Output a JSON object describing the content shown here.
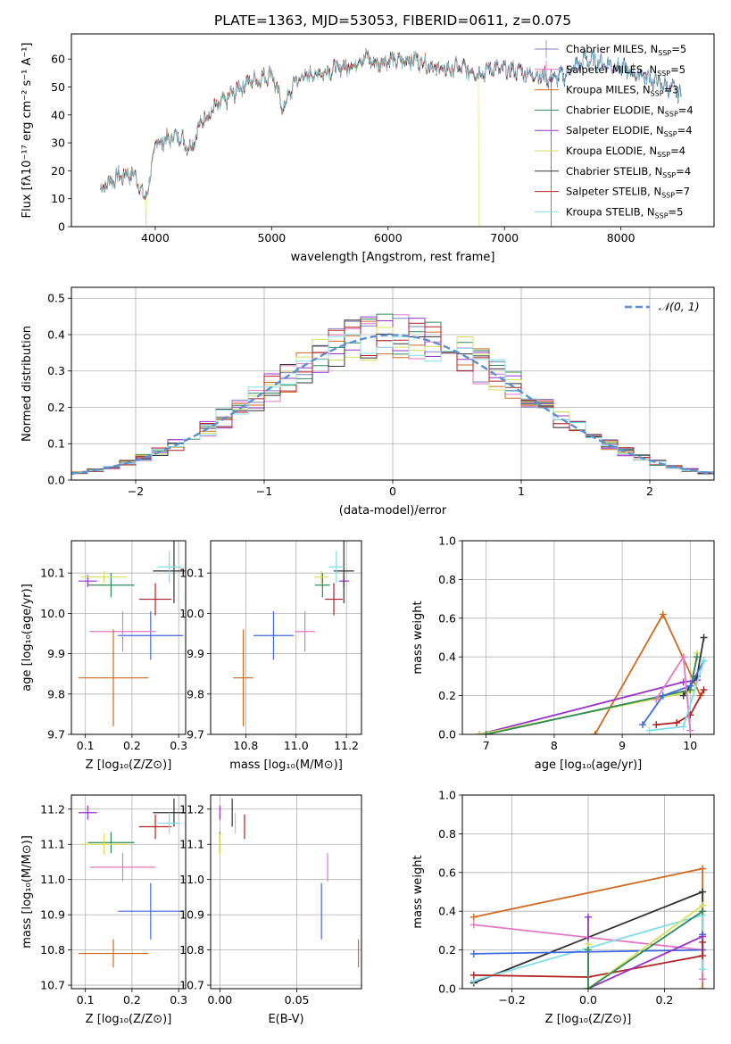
{
  "suptitle": "PLATE=1363, MJD=53053, FIBERID=0611, z=0.075",
  "colors": {
    "Chabrier MILES": "#7f7fc0",
    "Salpeter MILES": "#e377c2",
    "Kroupa MILES": "#d2691e",
    "Chabrier ELODIE": "#2e8b57",
    "Salpeter ELODIE": "#9932cc",
    "Kroupa ELODIE": "#d4e157",
    "Chabrier STELIB": "#333333",
    "Salpeter STELIB": "#b22222",
    "Kroupa STELIB": "#80deea",
    "model_blue": "#4169e1",
    "normal_curve": "#5b8fd6",
    "grid": "#b0b0b0"
  },
  "chart_data": [
    {
      "id": "spectrum",
      "type": "line",
      "title": "PLATE=1363, MJD=53053, FIBERID=0611, z=0.075",
      "xlabel": "wavelength [Angstrom, rest frame]",
      "ylabel": "Flux [fλ10⁻¹⁷ erg cm⁻² s⁻¹ A⁻¹]",
      "xlim": [
        3280,
        8800
      ],
      "ylim": [
        0,
        69
      ],
      "xticks": [
        4000,
        5000,
        6000,
        7000,
        8000
      ],
      "yticks": [
        0,
        10,
        20,
        30,
        40,
        50,
        60
      ],
      "legend_position": "upper right",
      "legend": [
        {
          "name": "Chabrier MILES, N",
          "sub": "SSP",
          "tail": "=5"
        },
        {
          "name": "Salpeter MILES, N",
          "sub": "SSP",
          "tail": "=5"
        },
        {
          "name": "Kroupa MILES, N",
          "sub": "SSP",
          "tail": "=3"
        },
        {
          "name": "Chabrier ELODIE, N",
          "sub": "SSP",
          "tail": "=4"
        },
        {
          "name": "Salpeter ELODIE, N",
          "sub": "SSP",
          "tail": "=4"
        },
        {
          "name": "Kroupa ELODIE, N",
          "sub": "SSP",
          "tail": "=4"
        },
        {
          "name": "Chabrier STELIB, N",
          "sub": "SSP",
          "tail": "=4"
        },
        {
          "name": "Salpeter STELIB, N",
          "sub": "SSP",
          "tail": "=7"
        },
        {
          "name": "Kroupa STELIB, N",
          "sub": "SSP",
          "tail": "=5"
        }
      ],
      "continuum": {
        "x": [
          3530,
          3600,
          3700,
          3800,
          3850,
          3900,
          3950,
          4000,
          4100,
          4200,
          4300,
          4400,
          4500,
          4600,
          4700,
          4800,
          4900,
          5000,
          5100,
          5200,
          5300,
          5400,
          5500,
          5600,
          5700,
          5800,
          5900,
          6000,
          6100,
          6200,
          6300,
          6400,
          6500,
          6600,
          6700,
          6800,
          6900,
          7000,
          7100,
          7200,
          7300,
          7400,
          7500,
          7600,
          7700,
          7800,
          7900,
          8000,
          8100,
          8200,
          8300,
          8400,
          8500
        ],
        "y": [
          13,
          16,
          18,
          19,
          17,
          10,
          15,
          30,
          31,
          33,
          28,
          38,
          42,
          45,
          49,
          52,
          53,
          55,
          42,
          52,
          54,
          55,
          56,
          57,
          58,
          61,
          58,
          60,
          59,
          60,
          59,
          57,
          56,
          57,
          56,
          55,
          57,
          56,
          56,
          55,
          54,
          53,
          54,
          57,
          60,
          59,
          58,
          57,
          55,
          54,
          52,
          50,
          48
        ]
      },
      "cutoffs": {
        "Kroupa ELODIE": [
          3920,
          6780
        ],
        "Salpeter STELIB": [
          7400,
          7400
        ],
        "Kroupa MILES": [
          7400,
          7400
        ]
      }
    },
    {
      "id": "residuals",
      "type": "histogram",
      "xlabel": "(data-model)/error",
      "ylabel": "Normed distribution",
      "xlim": [
        -2.5,
        2.5
      ],
      "ylim": [
        0,
        0.53
      ],
      "xticks": [
        -2,
        -1,
        0,
        1,
        2
      ],
      "yticks": [
        0.0,
        0.1,
        0.2,
        0.3,
        0.4,
        0.5
      ],
      "legend": [
        "𝒩(0, 1)"
      ],
      "legend_position": "upper right",
      "bin_width": 0.125
    },
    {
      "id": "age_vs_Z",
      "type": "errorbar",
      "xlabel": "Z [log₁₀(Z/Z⊙)]",
      "ylabel": "age  [log₁₀(age/yr)]",
      "xlim": [
        0.07,
        0.315
      ],
      "ylim": [
        9.7,
        10.18
      ],
      "xticks": [
        0.1,
        0.2,
        0.3
      ],
      "yticks": [
        9.7,
        9.8,
        9.9,
        10.0,
        10.1
      ]
    },
    {
      "id": "age_vs_mass",
      "type": "errorbar",
      "xlabel": "mass [log₁₀(M/M⊙)]",
      "ylabel": "",
      "xlim": [
        10.66,
        11.26
      ],
      "ylim": [
        9.7,
        10.18
      ],
      "xticks": [
        10.8,
        11.0,
        11.2
      ],
      "yticks": [
        9.7,
        9.8,
        9.9,
        10.0,
        10.1
      ]
    },
    {
      "id": "mass_vs_Z",
      "type": "errorbar",
      "xlabel": "Z [log₁₀(Z/Z⊙)]",
      "ylabel": "mass [log₁₀(M/M⊙)]",
      "xlim": [
        0.07,
        0.315
      ],
      "ylim": [
        10.69,
        11.24
      ],
      "xticks": [
        0.1,
        0.2,
        0.3
      ],
      "yticks": [
        10.7,
        10.8,
        10.9,
        11.0,
        11.1,
        11.2
      ]
    },
    {
      "id": "mass_vs_ebv",
      "type": "errorbar",
      "xlabel": "E(B-V)",
      "ylabel": "",
      "xlim": [
        -0.006,
        0.092
      ],
      "ylim": [
        10.69,
        11.24
      ],
      "xticks": [
        0.0,
        0.05
      ],
      "yticks": [
        10.7,
        10.8,
        10.9,
        11.0,
        11.1,
        11.2
      ]
    },
    {
      "id": "mw_vs_age",
      "type": "line",
      "xlabel": "age  [log₁₀(age/yr)]",
      "ylabel": "mass weight",
      "xlim": [
        6.65,
        10.35
      ],
      "ylim": [
        0,
        1.0
      ],
      "xticks": [
        7,
        8,
        9,
        10
      ],
      "yticks": [
        0.0,
        0.2,
        0.4,
        0.6,
        0.8,
        1.0
      ],
      "series": [
        {
          "model": "Kroupa MILES",
          "x": [
            8.6,
            9.6,
            10.15
          ],
          "y": [
            0.0,
            0.62,
            0.2
          ]
        },
        {
          "model": "Salpeter ELODIE",
          "x": [
            6.9,
            9.9,
            10.1
          ],
          "y": [
            0.0,
            0.27,
            0.28
          ]
        },
        {
          "model": "Kroupa ELODIE",
          "x": [
            6.9,
            10.0,
            10.1
          ],
          "y": [
            0.0,
            0.22,
            0.42
          ]
        },
        {
          "model": "Chabrier ELODIE",
          "x": [
            7.0,
            10.0,
            10.1
          ],
          "y": [
            0.0,
            0.23,
            0.4
          ]
        },
        {
          "model": "Chabrier STELIB",
          "x": [
            9.9,
            10.1,
            10.2
          ],
          "y": [
            0.2,
            0.3,
            0.5
          ]
        },
        {
          "model": "Salpeter STELIB",
          "x": [
            9.5,
            9.8,
            10.0,
            10.2
          ],
          "y": [
            0.05,
            0.06,
            0.1,
            0.23
          ]
        },
        {
          "model": "Chabrier MILES",
          "x": [
            9.3,
            9.6,
            10.0,
            10.2
          ],
          "y": [
            0.05,
            0.2,
            0.25,
            0.38
          ]
        },
        {
          "model": "Salpeter MILES",
          "x": [
            9.5,
            9.9,
            10.0
          ],
          "y": [
            0.18,
            0.4,
            0.02
          ]
        },
        {
          "model": "Kroupa STELIB",
          "x": [
            9.4,
            9.9,
            10.2
          ],
          "y": [
            0.02,
            0.04,
            0.38
          ]
        }
      ]
    },
    {
      "id": "mw_vs_Z",
      "type": "line",
      "xlabel": "Z [log₁₀(Z/Z⊙)]",
      "ylabel": "mass weight",
      "xlim": [
        -0.33,
        0.33
      ],
      "ylim": [
        0,
        1.0
      ],
      "xticks": [
        -0.2,
        0.0,
        0.2
      ],
      "yticks": [
        0.0,
        0.2,
        0.4,
        0.6,
        0.8,
        1.0
      ],
      "series": [
        {
          "model": "Kroupa MILES",
          "x": [
            -0.3,
            0.3,
            0.3
          ],
          "y": [
            0.37,
            0.62,
            0.0
          ]
        },
        {
          "model": "Chabrier STELIB",
          "x": [
            -0.3,
            0.3,
            0.3
          ],
          "y": [
            0.03,
            0.5,
            0.05
          ]
        },
        {
          "model": "Salpeter MILES",
          "x": [
            -0.3,
            0.3,
            0.3
          ],
          "y": [
            0.33,
            0.2,
            0.05
          ]
        },
        {
          "model": "Kroupa STELIB",
          "x": [
            -0.3,
            0.3,
            0.3
          ],
          "y": [
            0.04,
            0.38,
            0.1
          ]
        },
        {
          "model": "Chabrier MILES",
          "x": [
            -0.3,
            0.3,
            0.3
          ],
          "y": [
            0.18,
            0.2,
            0.28
          ]
        },
        {
          "model": "Salpeter STELIB",
          "x": [
            -0.3,
            0.0,
            0.3,
            0.3
          ],
          "y": [
            0.07,
            0.06,
            0.17,
            0.24
          ]
        },
        {
          "model": "Salpeter ELODIE",
          "x": [
            0.0,
            0.0,
            0.3
          ],
          "y": [
            0.37,
            0.0,
            0.27
          ]
        },
        {
          "model": "Kroupa ELODIE",
          "x": [
            0.0,
            0.0,
            0.3
          ],
          "y": [
            0.23,
            0.0,
            0.43
          ]
        },
        {
          "model": "Chabrier ELODIE",
          "x": [
            0.0,
            0.0,
            0.3
          ],
          "y": [
            0.2,
            0.0,
            0.4
          ]
        }
      ]
    }
  ],
  "errorbars": [
    {
      "model": "Chabrier MILES",
      "color": "model_blue",
      "Z": 0.24,
      "Zerr": 0.07,
      "age": 9.945,
      "ageerr": 0.06,
      "mass": 10.91,
      "masserr": 0.08,
      "ebv": 0.066,
      "ebverr": 0.0
    },
    {
      "model": "Salpeter MILES",
      "color": "Salpeter MILES",
      "Z": 0.18,
      "Zerr": 0.07,
      "age": 9.955,
      "ageerr": 0.05,
      "mass": 11.035,
      "masserr": 0.04,
      "ebv": 0.07,
      "ebverr": 0.0
    },
    {
      "model": "Kroupa MILES",
      "color": "Kroupa MILES",
      "Z": 0.16,
      "Zerr": 0.075,
      "age": 9.84,
      "ageerr": 0.12,
      "mass": 10.79,
      "masserr": 0.04,
      "ebv": 0.09,
      "ebverr": 0.0
    },
    {
      "model": "Chabrier ELODIE",
      "color": "Chabrier ELODIE",
      "Z": 0.155,
      "Zerr": 0.05,
      "age": 10.07,
      "ageerr": 0.03,
      "mass": 11.105,
      "masserr": 0.03,
      "ebv": 0.0,
      "ebverr": 0.0
    },
    {
      "model": "Salpeter ELODIE",
      "color": "Salpeter ELODIE",
      "Z": 0.105,
      "Zerr": 0.02,
      "age": 10.08,
      "ageerr": 0.015,
      "mass": 11.19,
      "masserr": 0.02,
      "ebv": 0.0,
      "ebverr": 0.0
    },
    {
      "model": "Kroupa ELODIE",
      "color": "Kroupa ELODIE",
      "Z": 0.14,
      "Zerr": 0.05,
      "age": 10.09,
      "ageerr": 0.015,
      "mass": 11.1,
      "masserr": 0.03,
      "ebv": 0.0,
      "ebverr": 0.0
    },
    {
      "model": "Chabrier STELIB",
      "color": "Chabrier STELIB",
      "Z": 0.29,
      "Zerr": 0.045,
      "age": 10.105,
      "ageerr": 0.08,
      "mass": 11.19,
      "masserr": 0.04,
      "ebv": 0.008,
      "ebverr": 0.0
    },
    {
      "model": "Salpeter STELIB",
      "color": "Salpeter STELIB",
      "Z": 0.25,
      "Zerr": 0.035,
      "age": 10.035,
      "ageerr": 0.04,
      "mass": 11.15,
      "masserr": 0.035,
      "ebv": 0.016,
      "ebverr": 0.0
    },
    {
      "model": "Kroupa STELIB",
      "color": "Kroupa STELIB",
      "Z": 0.28,
      "Zerr": 0.025,
      "age": 10.115,
      "ageerr": 0.04,
      "mass": 11.16,
      "masserr": 0.03,
      "ebv": 0.01,
      "ebverr": 0.0
    }
  ]
}
